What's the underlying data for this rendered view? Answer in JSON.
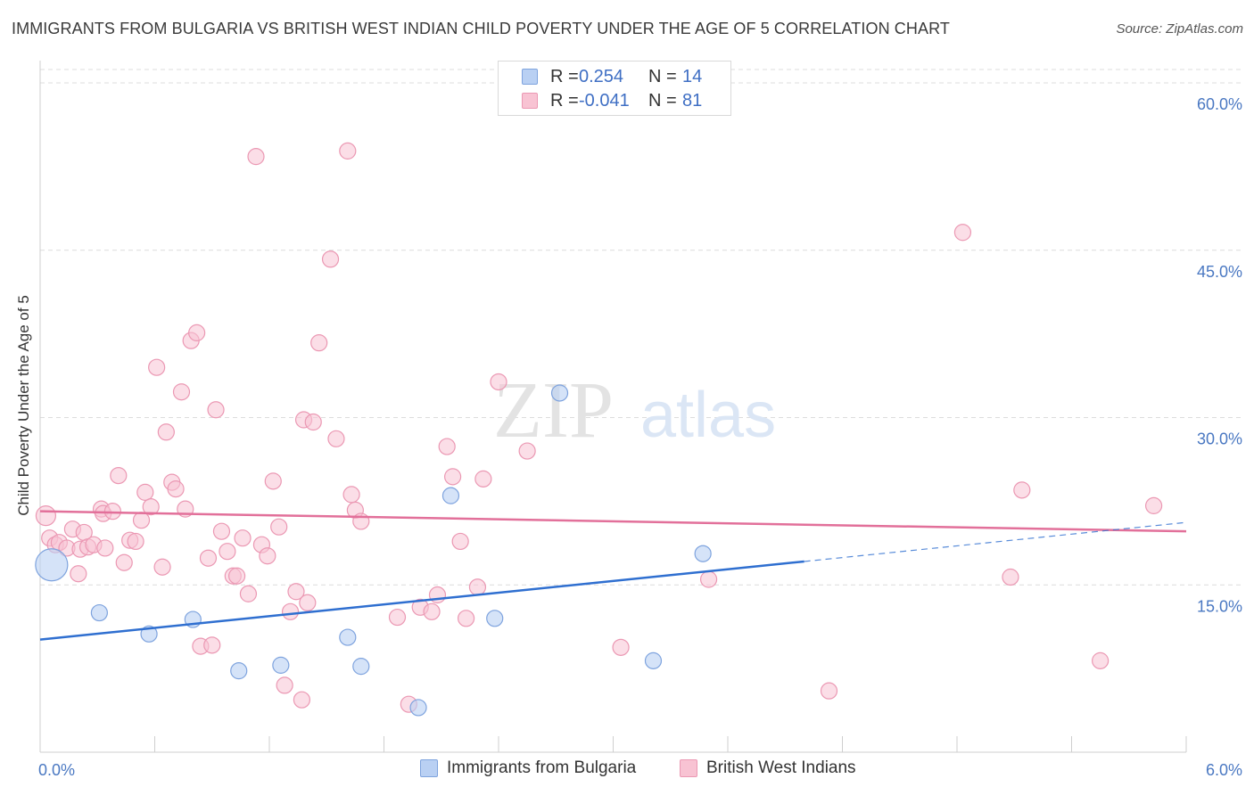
{
  "header": {
    "title": "IMMIGRANTS FROM BULGARIA VS BRITISH WEST INDIAN CHILD POVERTY UNDER THE AGE OF 5 CORRELATION CHART",
    "source": "Source: ZipAtlas.com"
  },
  "watermark": {
    "zip": "ZIP",
    "atlas": "atlas"
  },
  "legend": {
    "rows": [
      {
        "r_label": "R =",
        "r_value": "0.254",
        "n_label": "N =",
        "n_value": "14"
      },
      {
        "r_label": "R =",
        "r_value": "-0.041",
        "n_label": "N =",
        "n_value": "81"
      }
    ]
  },
  "colors": {
    "bulgaria_fill": "#b9d0f3",
    "bulgaria_stroke": "#7ea3de",
    "bulgaria_line": "#2f6fd0",
    "bwi_fill": "#f8c3d3",
    "bwi_stroke": "#eb98b3",
    "bwi_line": "#e2709a",
    "axis_text": "#4a78c2",
    "grid": "#dcdcdc"
  },
  "chart_data": {
    "type": "scatter",
    "title": "IMMIGRANTS FROM BULGARIA VS BRITISH WEST INDIAN CHILD POVERTY UNDER THE AGE OF 5 CORRELATION CHART",
    "xlabel": "",
    "ylabel": "Child Poverty Under the Age of 5",
    "xlim": [
      0,
      6
    ],
    "ylim": [
      0,
      62
    ],
    "x_tick_labels": [
      "0.0%",
      "6.0%"
    ],
    "y_ticks": [
      15,
      30,
      45,
      60
    ],
    "y_tick_labels": [
      "15.0%",
      "30.0%",
      "45.0%",
      "60.0%"
    ],
    "grid": true,
    "legend_position": "top-center",
    "series": [
      {
        "name": "Immigrants from Bulgaria",
        "points": [
          [
            0.06,
            16.8,
            18
          ],
          [
            0.31,
            12.5,
            9
          ],
          [
            0.57,
            10.6,
            9
          ],
          [
            0.8,
            11.9,
            9
          ],
          [
            1.04,
            7.3,
            9
          ],
          [
            1.26,
            7.8,
            9
          ],
          [
            1.61,
            10.3,
            9
          ],
          [
            1.68,
            7.7,
            9
          ],
          [
            1.98,
            4.0,
            9
          ],
          [
            2.15,
            23.0,
            9
          ],
          [
            2.38,
            12.0,
            9
          ],
          [
            2.72,
            32.2,
            9
          ],
          [
            3.21,
            8.2,
            9
          ],
          [
            3.47,
            17.8,
            9
          ]
        ],
        "trend": {
          "x0": 0.0,
          "y0": 10.1,
          "x1": 4.0,
          "y1": 17.1,
          "dash_x1": 6.0,
          "dash_y1": 20.6
        }
      },
      {
        "name": "British West Indians",
        "points": [
          [
            0.03,
            21.2,
            11
          ],
          [
            0.05,
            19.2,
            9
          ],
          [
            0.08,
            18.6,
            9
          ],
          [
            0.1,
            18.8,
            9
          ],
          [
            0.14,
            18.3,
            9
          ],
          [
            0.17,
            20.0,
            9
          ],
          [
            0.2,
            16.0,
            9
          ],
          [
            0.21,
            18.2,
            9
          ],
          [
            0.23,
            19.7,
            9
          ],
          [
            0.25,
            18.4,
            9
          ],
          [
            0.28,
            18.6,
            9
          ],
          [
            0.32,
            21.8,
            9
          ],
          [
            0.33,
            21.4,
            9
          ],
          [
            0.34,
            18.3,
            9
          ],
          [
            0.38,
            21.6,
            9
          ],
          [
            0.41,
            24.8,
            9
          ],
          [
            0.44,
            17.0,
            9
          ],
          [
            0.47,
            19.0,
            9
          ],
          [
            0.5,
            18.9,
            9
          ],
          [
            0.53,
            20.8,
            9
          ],
          [
            0.55,
            23.3,
            9
          ],
          [
            0.58,
            22.0,
            9
          ],
          [
            0.61,
            34.5,
            9
          ],
          [
            0.64,
            16.6,
            9
          ],
          [
            0.66,
            28.7,
            9
          ],
          [
            0.69,
            24.2,
            9
          ],
          [
            0.71,
            23.6,
            9
          ],
          [
            0.74,
            32.3,
            9
          ],
          [
            0.76,
            21.8,
            9
          ],
          [
            0.79,
            36.9,
            9
          ],
          [
            0.82,
            37.6,
            9
          ],
          [
            0.84,
            9.5,
            9
          ],
          [
            0.88,
            17.4,
            9
          ],
          [
            0.9,
            9.6,
            9
          ],
          [
            0.92,
            30.7,
            9
          ],
          [
            0.95,
            19.8,
            9
          ],
          [
            0.98,
            18.0,
            9
          ],
          [
            1.01,
            15.8,
            9
          ],
          [
            1.03,
            15.8,
            9
          ],
          [
            1.06,
            19.2,
            9
          ],
          [
            1.09,
            14.2,
            9
          ],
          [
            1.13,
            53.4,
            9
          ],
          [
            1.16,
            18.6,
            9
          ],
          [
            1.19,
            17.6,
            9
          ],
          [
            1.22,
            24.3,
            9
          ],
          [
            1.25,
            20.2,
            9
          ],
          [
            1.28,
            6.0,
            9
          ],
          [
            1.31,
            12.6,
            9
          ],
          [
            1.34,
            14.4,
            9
          ],
          [
            1.37,
            4.7,
            9
          ],
          [
            1.38,
            29.8,
            9
          ],
          [
            1.4,
            13.4,
            9
          ],
          [
            1.43,
            29.6,
            9
          ],
          [
            1.46,
            36.7,
            9
          ],
          [
            1.52,
            44.2,
            9
          ],
          [
            1.55,
            28.1,
            9
          ],
          [
            1.61,
            53.9,
            9
          ],
          [
            1.63,
            23.1,
            9
          ],
          [
            1.65,
            21.7,
            9
          ],
          [
            1.68,
            20.7,
            9
          ],
          [
            1.87,
            12.1,
            9
          ],
          [
            1.93,
            4.3,
            9
          ],
          [
            1.99,
            13.0,
            9
          ],
          [
            2.05,
            12.6,
            9
          ],
          [
            2.08,
            14.1,
            9
          ],
          [
            2.13,
            27.4,
            9
          ],
          [
            2.16,
            24.7,
            9
          ],
          [
            2.2,
            18.9,
            9
          ],
          [
            2.23,
            12.0,
            9
          ],
          [
            2.29,
            14.8,
            9
          ],
          [
            2.32,
            24.5,
            9
          ],
          [
            2.4,
            33.2,
            9
          ],
          [
            2.55,
            27.0,
            9
          ],
          [
            3.04,
            9.4,
            9
          ],
          [
            3.5,
            15.5,
            9
          ],
          [
            4.13,
            5.5,
            9
          ],
          [
            4.83,
            46.6,
            9
          ],
          [
            5.08,
            15.7,
            9
          ],
          [
            5.14,
            23.5,
            9
          ],
          [
            5.55,
            8.2,
            9
          ],
          [
            5.83,
            22.1,
            9
          ]
        ],
        "trend": {
          "x0": 0.0,
          "y0": 21.6,
          "x1": 6.0,
          "y1": 19.8
        }
      }
    ]
  }
}
